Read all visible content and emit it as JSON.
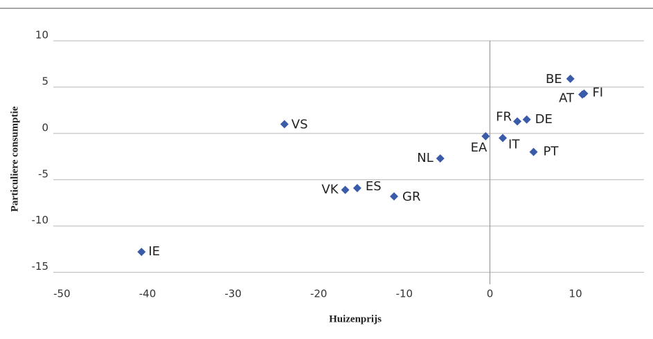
{
  "chart_data": {
    "type": "scatter",
    "x_label": "Huizenprijs",
    "y_label": "Particuliere consumptie",
    "labels": [
      "IE",
      "VS",
      "VK",
      "ES",
      "GR",
      "NL",
      "EA",
      "IT",
      "FR",
      "DE",
      "PT",
      "BE",
      "AT",
      "FI"
    ],
    "x": [
      -40.7,
      -24.0,
      -16.9,
      -15.5,
      -11.2,
      -5.8,
      -0.5,
      1.5,
      3.2,
      4.3,
      5.1,
      9.4,
      10.8,
      11.0
    ],
    "values": [
      -12.8,
      1.0,
      -6.1,
      -5.9,
      -6.8,
      -2.7,
      -0.3,
      -0.5,
      1.3,
      1.5,
      -2.0,
      5.9,
      4.2,
      4.3
    ],
    "color": "#3a5ba8",
    "xlim": [
      -51,
      18
    ],
    "xticks": [
      -50,
      -40,
      -30,
      -20,
      -10,
      0,
      10
    ],
    "ylim": [
      -16,
      10
    ],
    "yticks": [
      -15,
      -10,
      -5,
      0,
      5,
      10
    ],
    "grid": true
  }
}
